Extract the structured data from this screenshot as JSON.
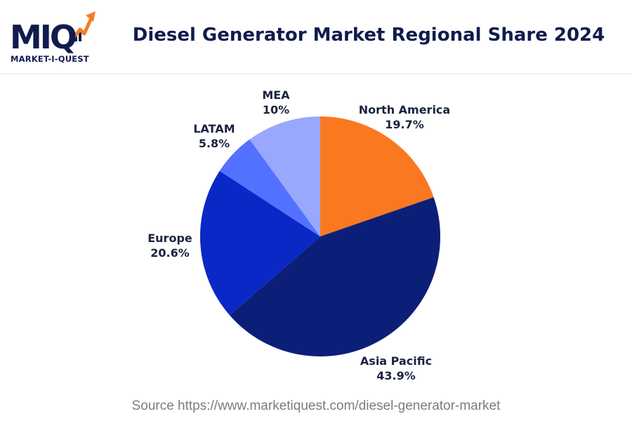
{
  "logo": {
    "mark": "MIQ",
    "subtitle": "MARKET-I-QUEST",
    "icon": "growth-arrow-icon",
    "colors": {
      "navy": "#0f1c4d",
      "orange": "#f57c26"
    }
  },
  "chart_data": {
    "type": "pie",
    "title": "Diesel Generator Market Regional Share 2024",
    "slices": [
      {
        "label": "North America",
        "value": 19.7,
        "display": "19.7%",
        "color": "#fa7820"
      },
      {
        "label": "Asia Pacific",
        "value": 43.9,
        "display": "43.9%",
        "color": "#0c1f78"
      },
      {
        "label": "Europe",
        "value": 20.6,
        "display": "20.6%",
        "color": "#0a28c6"
      },
      {
        "label": "LATAM",
        "value": 5.8,
        "display": "5.8%",
        "color": "#5271ff"
      },
      {
        "label": "MEA",
        "value": 10,
        "display": "10%",
        "color": "#99a8fd"
      }
    ],
    "start_angle_deg": 0,
    "direction": "clockwise",
    "legend": "none",
    "labels_position": "outside"
  },
  "source": "Source https://www.marketiquest.com/diesel-generator-market"
}
